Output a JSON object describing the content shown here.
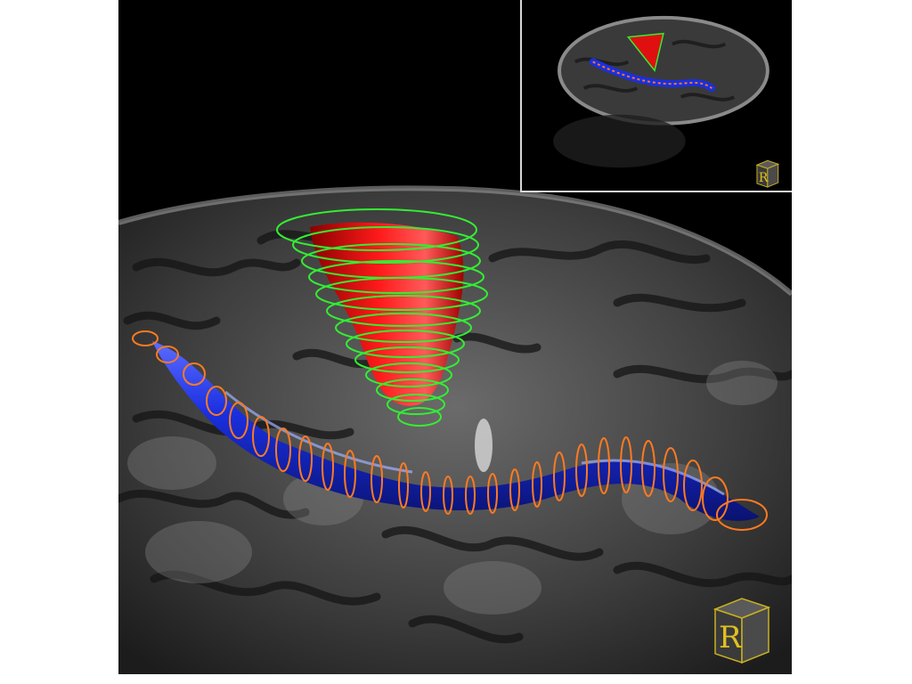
{
  "main_view": {
    "orientation_marker": {
      "letter": "R",
      "icon": "orientation-cube-icon"
    }
  },
  "inset_view": {
    "orientation_marker": {
      "letter": "R",
      "icon": "orientation-cube-icon"
    }
  },
  "structures": [
    {
      "name": "red-volume",
      "color": "#e01010",
      "contour_color": "#33ee33"
    },
    {
      "name": "blue-tube",
      "color": "#1a2fe0",
      "contour_color": "#ff7a20"
    }
  ],
  "colors": {
    "background": "#000000",
    "inset_border": "#d8d8d8",
    "page": "#ffffff"
  }
}
